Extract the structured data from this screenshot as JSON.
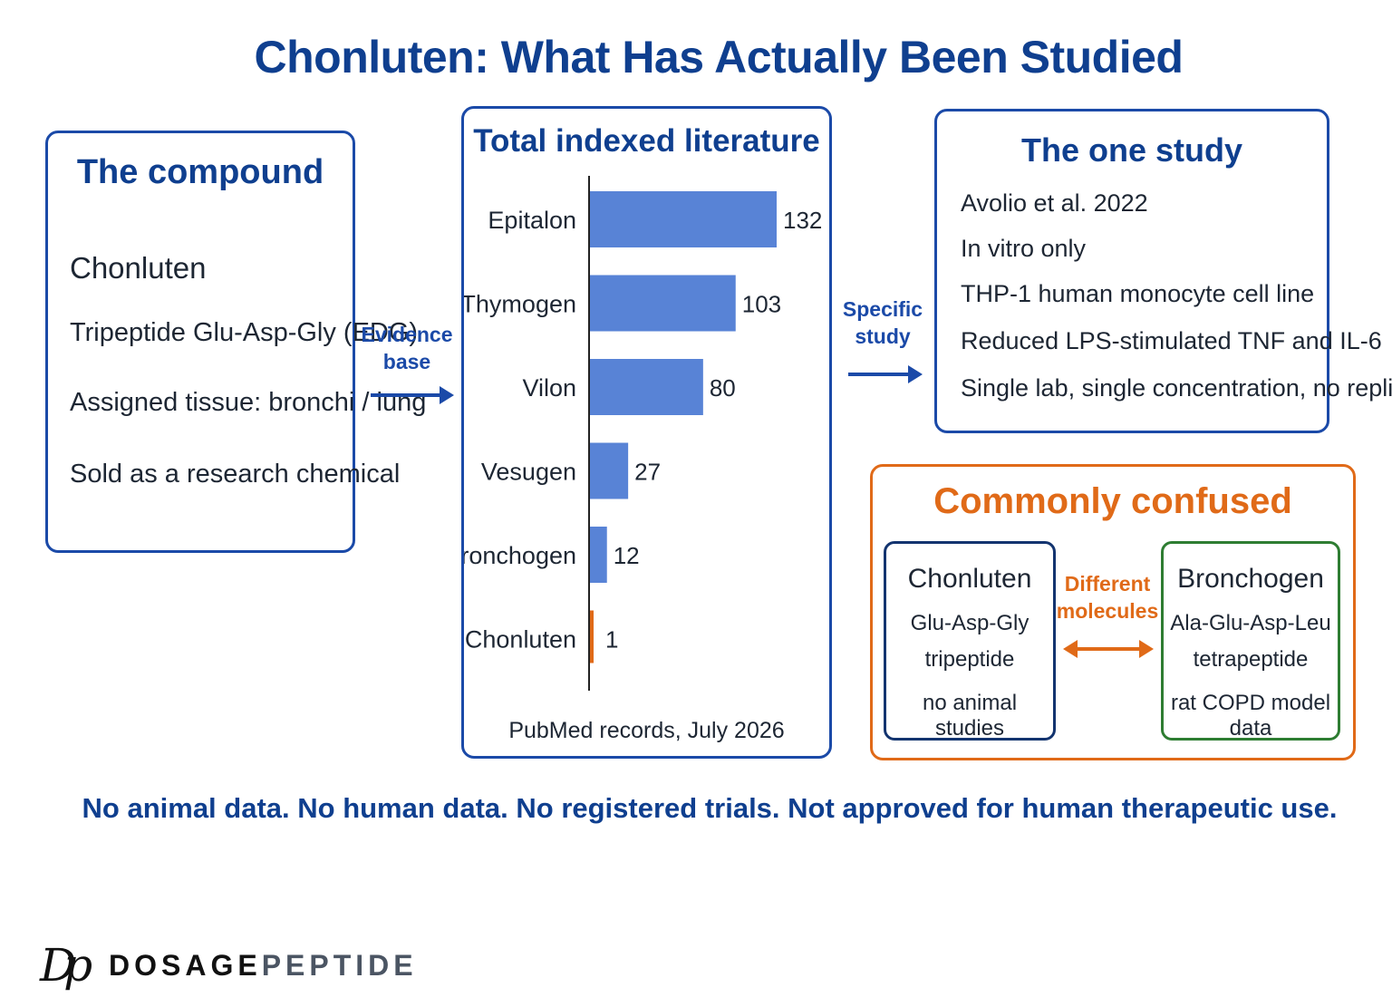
{
  "title": "Chonluten: What Has Actually Been Studied",
  "compound_box": {
    "title": "The compound",
    "lines": [
      "Chonluten",
      "Tripeptide Glu-Asp-Gly (EDG)",
      "Assigned tissue: bronchi / lung",
      "Sold as a research chemical"
    ]
  },
  "arrow_evidence": {
    "line1": "Evidence",
    "line2": "base"
  },
  "literature_box": {
    "title": "Total indexed literature",
    "caption": "PubMed records, July 2026"
  },
  "chart_data": {
    "type": "bar",
    "orientation": "horizontal",
    "title": "Total indexed literature",
    "categories": [
      "Epitalon",
      "Thymogen",
      "Vilon",
      "Vesugen",
      "Bronchogen",
      "Chonluten"
    ],
    "values": [
      132,
      103,
      80,
      27,
      12,
      1
    ],
    "xlim": [
      0,
      132
    ],
    "grid": false,
    "colors": {
      "default": "#5883d6",
      "highlight": "#e06a18"
    },
    "highlight_category": "Chonluten"
  },
  "arrow_study": {
    "line1": "Specific",
    "line2": "study"
  },
  "study_box": {
    "title": "The one study",
    "lines": [
      "Avolio et al. 2022",
      "In vitro only",
      "THP-1 human monocyte cell line",
      "Reduced LPS-stimulated TNF and IL-6",
      "Single lab, single concentration, no replication"
    ]
  },
  "confused_box": {
    "title": "Commonly confused",
    "left": {
      "name": "Chonluten",
      "sequence": "Glu-Asp-Gly",
      "kind": "tripeptide",
      "note": "no animal studies"
    },
    "middle": {
      "line1": "Different",
      "line2": "molecules"
    },
    "right": {
      "name": "Bronchogen",
      "sequence": "Ala-Glu-Asp-Leu",
      "kind": "tetrapeptide",
      "note": "rat COPD model data"
    }
  },
  "footer": "No animal data. No human data. No registered trials. Not approved for human therapeutic use.",
  "logo": {
    "mark": "Dp",
    "brand_part1": "DOSAGE",
    "brand_part2": "PEPTIDE"
  },
  "colors": {
    "navy": "#0f3f8f",
    "blue_border": "#1b4aa8",
    "orange": "#e06a18",
    "green_border": "#2e7d32",
    "bar_blue": "#5883d6",
    "logo_gray": "#4b5563"
  }
}
